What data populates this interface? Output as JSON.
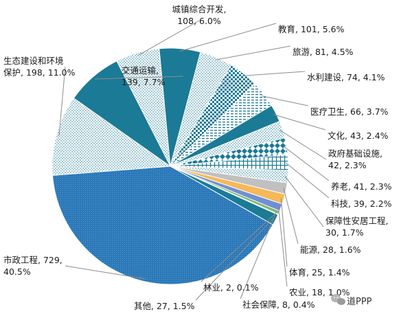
{
  "chart_data": {
    "type": "pie",
    "title": "",
    "slices": [
      {
        "name": "城镇综合开发",
        "value": 108,
        "percent": "6.0%",
        "label_lines": [
          "城镇综合开发,",
          "108, 6.0%"
        ],
        "color": "#1b7a96",
        "pattern": "dots-light"
      },
      {
        "name": "教育",
        "value": 101,
        "percent": "5.6%",
        "label_lines": [
          "教育, 101, 5.6%"
        ],
        "color": "#1b7a96",
        "pattern": "solid"
      },
      {
        "name": "旅游",
        "value": 81,
        "percent": "4.5%",
        "label_lines": [
          "旅游, 81, 4.5%"
        ],
        "color": "#1b7a96",
        "pattern": "dots-light"
      },
      {
        "name": "水利建设",
        "value": 74,
        "percent": "4.1%",
        "label_lines": [
          "水利建设, 74, 4.1%"
        ],
        "color": "#1b7a96",
        "pattern": "checker"
      },
      {
        "name": "医疗卫生",
        "value": 66,
        "percent": "3.7%",
        "label_lines": [
          "医疗卫生, 66, 3.7%"
        ],
        "color": "#1b7a96",
        "pattern": "hlines-dashed"
      },
      {
        "name": "文化",
        "value": 43,
        "percent": "2.4%",
        "label_lines": [
          "文化, 43, 2.4%"
        ],
        "color": "#1b7a96",
        "pattern": "solid"
      },
      {
        "name": "政府基础设施",
        "value": 42,
        "percent": "2.3%",
        "label_lines": [
          "政府基础设施,",
          "42, 2.3%"
        ],
        "color": "#1b7a96",
        "pattern": "dots-light"
      },
      {
        "name": "养老",
        "value": 41,
        "percent": "2.3%",
        "label_lines": [
          "养老, 41, 2.3%"
        ],
        "color": "#1b7a96",
        "pattern": "diamonds"
      },
      {
        "name": "科技",
        "value": 39,
        "percent": "2.2%",
        "label_lines": [
          "科技, 39, 2.2%"
        ],
        "color": "#1b7a96",
        "pattern": "grid"
      },
      {
        "name": "保障性安居工程",
        "value": 30,
        "percent": "1.7%",
        "label_lines": [
          "保障性安居工程,",
          "30, 1.7%"
        ],
        "color": "#1b7a96",
        "pattern": "dots-light"
      },
      {
        "name": "能源",
        "value": 28,
        "percent": "1.6%",
        "label_lines": [
          "能源, 28, 1.6%"
        ],
        "color": "#c0c0c0",
        "pattern": "solid"
      },
      {
        "name": "体育",
        "value": 25,
        "percent": "1.4%",
        "label_lines": [
          "体育, 25, 1.4%"
        ],
        "color": "#f5b95a",
        "pattern": "solid"
      },
      {
        "name": "农业",
        "value": 18,
        "percent": "1.0%",
        "label_lines": [
          "农业, 18, 1.0%"
        ],
        "color": "#6f8fd4",
        "pattern": "solid"
      },
      {
        "name": "社会保障",
        "value": 8,
        "percent": "0.4%",
        "label_lines": [
          "社会保障, 8, 0.4%"
        ],
        "color": "#7fb86a",
        "pattern": "solid"
      },
      {
        "name": "林业",
        "value": 2,
        "percent": "0.1%",
        "label_lines": [
          "林业, 2, 0.1%"
        ],
        "color": "#264478",
        "pattern": "solid"
      },
      {
        "name": "其他",
        "value": 27,
        "percent": "1.5%",
        "label_lines": [
          "其他, 27, 1.5%"
        ],
        "color": "#1b7a96",
        "pattern": "solid"
      },
      {
        "name": "市政工程",
        "value": 729,
        "percent": "40.5%",
        "label_lines": [
          "市政工程, 729,",
          "40.5%"
        ],
        "color": "#2a78b8",
        "pattern": "dots-dense"
      },
      {
        "name": "生态建设和环境保护",
        "value": 198,
        "percent": "11.0%",
        "label_lines": [
          "生态建设和环境",
          "保护, 198, 11.0%"
        ],
        "color": "#1b7a96",
        "pattern": "dots-light"
      },
      {
        "name": "交通运输",
        "value": 139,
        "percent": "7.7%",
        "label_lines": [
          "交通运输,",
          "139, 7.7%"
        ],
        "color": "#1b7a96",
        "pattern": "solid"
      }
    ],
    "legend": "none",
    "data_labels": "outside with leader lines"
  },
  "watermark": {
    "text": "道PPP",
    "icon": "wechat-icon"
  }
}
